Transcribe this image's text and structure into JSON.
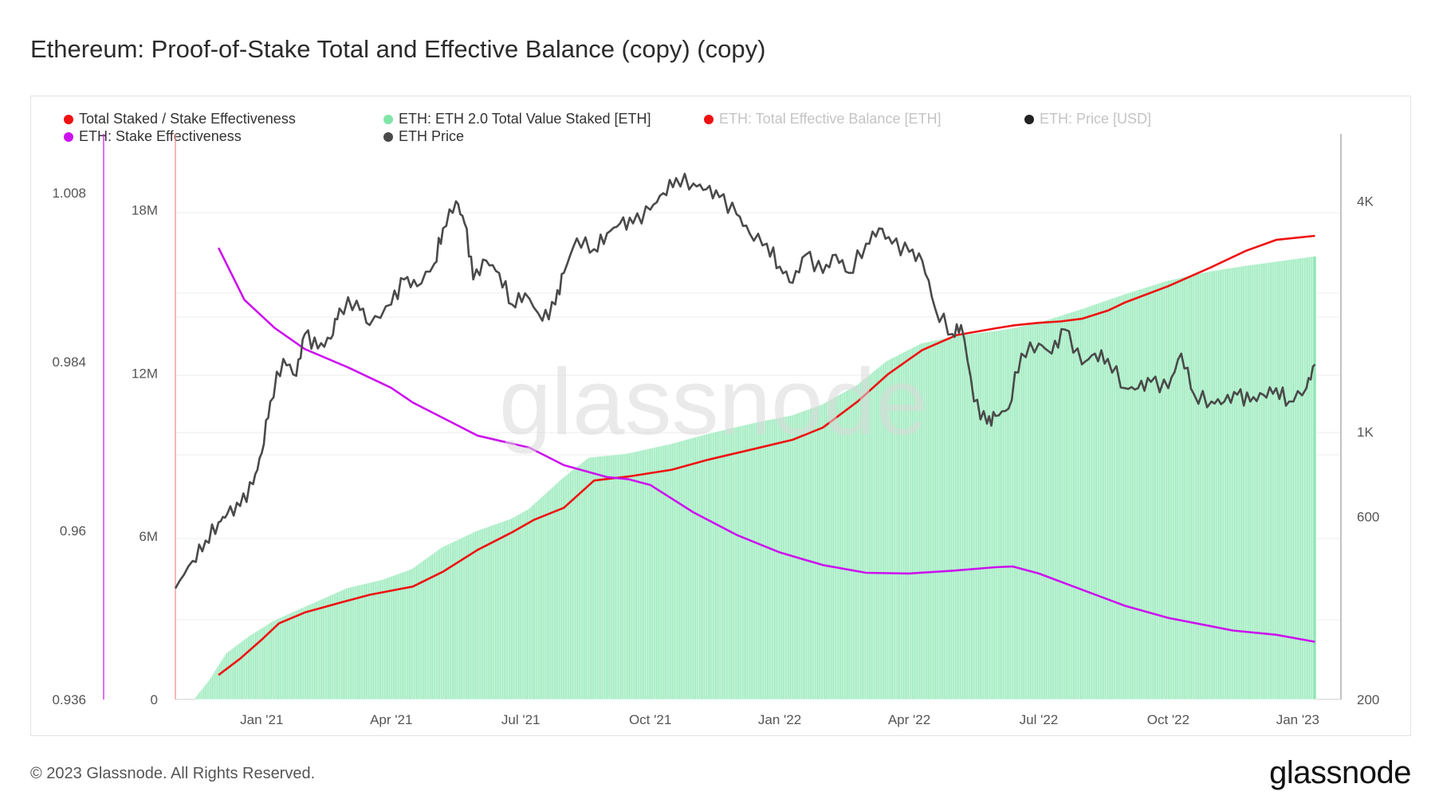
{
  "title": "Ethereum: Proof-of-Stake Total and Effective Balance (copy) (copy)",
  "legend": [
    {
      "label": "Total Staked / Stake Effectiveness",
      "color": "#ee1111",
      "faded": false
    },
    {
      "label": "ETH: ETH 2.0 Total Value Staked [ETH]",
      "color": "#7fe6a8",
      "faded": false
    },
    {
      "label": "ETH: Total Effective Balance [ETH]",
      "color": "#ee1111",
      "faded": true
    },
    {
      "label": "ETH: Price [USD]",
      "color": "#222222",
      "faded": true
    },
    {
      "label": "ETH: Stake Effectiveness",
      "color": "#cc11ee",
      "faded": false
    },
    {
      "label": "ETH Price",
      "color": "#4a4a4a",
      "faded": false
    }
  ],
  "watermark": "glassnode",
  "footer": "© 2023 Glassnode. All Rights Reserved.",
  "brand": "glassnode",
  "chart_data": {
    "type": "area",
    "x_ticks": [
      "Jan '21",
      "Apr '21",
      "Jul '21",
      "Oct '21",
      "Jan '22",
      "Apr '22",
      "Jul '22",
      "Oct '22",
      "Jan '23"
    ],
    "y_axis_effectiveness": {
      "ticks": [
        "1.008",
        "0.984",
        "0.96",
        "0.936"
      ],
      "ylim": [
        0.936,
        1.0164
      ]
    },
    "y_axis_staked": {
      "ticks": [
        "18M",
        "12M",
        "6M",
        "0"
      ],
      "ylim": [
        0,
        20.8
      ]
    },
    "y_axis_price": {
      "ticks": [
        "4K",
        "1K",
        "600",
        "200"
      ],
      "scale": "log",
      "ylim": [
        200,
        6000
      ]
    },
    "x_range_months": [
      -2,
      25
    ],
    "series": [
      {
        "name": "ETH: ETH 2.0 Total Value Staked [ETH]",
        "axis": "staked",
        "kind": "bars",
        "color": "#8ee8b4",
        "x": [
          -1.55,
          -1.2,
          -0.8,
          -0.3,
          0.3,
          1.0,
          1.5,
          2.0,
          2.8,
          3.5,
          4.2,
          5.0,
          5.8,
          6.2,
          7.0,
          7.6,
          8.5,
          9.5,
          10.3,
          11.5,
          12.3,
          13.0,
          13.8,
          14.5,
          15.3,
          16.2,
          17.0,
          17.4,
          18.0,
          19.0,
          20.0,
          21.0,
          22.0,
          22.8,
          23.5,
          24.4
        ],
        "y": [
          0,
          0.7,
          1.7,
          2.3,
          2.9,
          3.4,
          3.75,
          4.1,
          4.4,
          4.8,
          5.6,
          6.2,
          6.65,
          7.0,
          8.15,
          8.9,
          9.05,
          9.4,
          9.75,
          10.2,
          10.45,
          10.85,
          11.55,
          12.45,
          13.1,
          13.4,
          13.55,
          13.65,
          13.85,
          14.35,
          14.9,
          15.4,
          15.75,
          15.95,
          16.1,
          16.3
        ]
      },
      {
        "name": "ETH: Total Effective Balance [ETH]",
        "axis": "staked",
        "kind": "line",
        "color": "#ee1111",
        "x": [
          -1.0,
          -0.5,
          0.0,
          0.4,
          1.0,
          1.8,
          2.5,
          3.5,
          4.2,
          5.0,
          5.8,
          6.3,
          7.0,
          7.7,
          8.5,
          9.5,
          10.3,
          11.5,
          12.3,
          13.0,
          13.8,
          14.5,
          15.3,
          16.1,
          17.0,
          17.4,
          18.0,
          18.5,
          19.0,
          19.6,
          20.0,
          21.0,
          22.0,
          22.8,
          23.5,
          24.4
        ],
        "y": [
          0.9,
          1.5,
          2.2,
          2.8,
          3.2,
          3.55,
          3.85,
          4.15,
          4.7,
          5.5,
          6.15,
          6.6,
          7.05,
          8.05,
          8.2,
          8.45,
          8.8,
          9.25,
          9.55,
          10.0,
          10.95,
          11.95,
          12.85,
          13.4,
          13.65,
          13.75,
          13.85,
          13.9,
          14.0,
          14.3,
          14.6,
          15.2,
          15.9,
          16.5,
          16.9,
          17.05
        ]
      },
      {
        "name": "ETH: Stake Effectiveness",
        "axis": "effectiveness",
        "kind": "line",
        "color": "#cc11ee",
        "x": [
          -1.0,
          -0.4,
          0.3,
          1.0,
          2.0,
          3.0,
          3.5,
          4.3,
          5.0,
          6.2,
          7.0,
          8.0,
          8.5,
          9.0,
          10.0,
          11.0,
          12.0,
          13.0,
          14.0,
          15.0,
          16.0,
          17.0,
          17.4,
          18.0,
          19.0,
          20.0,
          21.0,
          22.0,
          22.5,
          23.5,
          24.4
        ],
        "y": [
          1.0002,
          0.9928,
          0.9888,
          0.9858,
          0.9832,
          0.9803,
          0.9782,
          0.9757,
          0.9735,
          0.9718,
          0.9693,
          0.9676,
          0.9673,
          0.9665,
          0.9626,
          0.9594,
          0.9569,
          0.9551,
          0.954,
          0.9539,
          0.9543,
          0.9548,
          0.9549,
          0.9539,
          0.9516,
          0.9493,
          0.9476,
          0.9464,
          0.9458,
          0.9452,
          0.9442
        ]
      },
      {
        "name": "ETH Price",
        "axis": "price",
        "kind": "line",
        "color": "#4a4a4a",
        "x": [
          -2.0,
          -1.6,
          -1.3,
          -1.0,
          -0.8,
          -0.5,
          -0.2,
          0.0,
          0.2,
          0.5,
          0.8,
          1.0,
          1.3,
          1.6,
          1.8,
          2.2,
          2.5,
          3.0,
          3.3,
          3.6,
          4.0,
          4.2,
          4.5,
          4.7,
          4.9,
          5.2,
          5.5,
          5.8,
          6.1,
          6.5,
          6.8,
          7.0,
          7.3,
          7.7,
          8.0,
          8.3,
          8.6,
          9.0,
          9.3,
          9.6,
          10.0,
          10.3,
          10.6,
          11.0,
          11.3,
          11.7,
          12.0,
          12.3,
          12.6,
          13.0,
          13.3,
          13.6,
          14.0,
          14.3,
          14.6,
          15.0,
          15.3,
          15.6,
          16.0,
          16.2,
          16.5,
          16.8,
          17.0,
          17.3,
          17.6,
          18.0,
          18.3,
          18.6,
          19.0,
          19.3,
          19.6,
          20.0,
          20.3,
          20.6,
          21.0,
          21.3,
          21.6,
          22.0,
          22.3,
          22.6,
          22.9,
          23.2,
          23.5,
          23.8,
          24.2,
          24.4
        ],
        "y": [
          390,
          460,
          520,
          580,
          610,
          640,
          730,
          880,
          1200,
          1550,
          1400,
          1800,
          1650,
          1750,
          2100,
          2200,
          1900,
          2150,
          2500,
          2400,
          2750,
          3400,
          4000,
          3500,
          2500,
          2800,
          2600,
          2150,
          2300,
          1950,
          2150,
          2600,
          3200,
          3000,
          3300,
          3500,
          3500,
          3800,
          4200,
          4600,
          4450,
          4300,
          4100,
          3700,
          3300,
          3100,
          2700,
          2450,
          2900,
          2600,
          2900,
          2600,
          3100,
          3400,
          3100,
          2950,
          2800,
          2100,
          1800,
          1900,
          1200,
          1050,
          1100,
          1150,
          1600,
          1700,
          1600,
          1850,
          1500,
          1600,
          1550,
          1300,
          1300,
          1350,
          1300,
          1600,
          1250,
          1200,
          1200,
          1250,
          1200,
          1250,
          1300,
          1200,
          1300,
          1500
        ]
      }
    ]
  }
}
